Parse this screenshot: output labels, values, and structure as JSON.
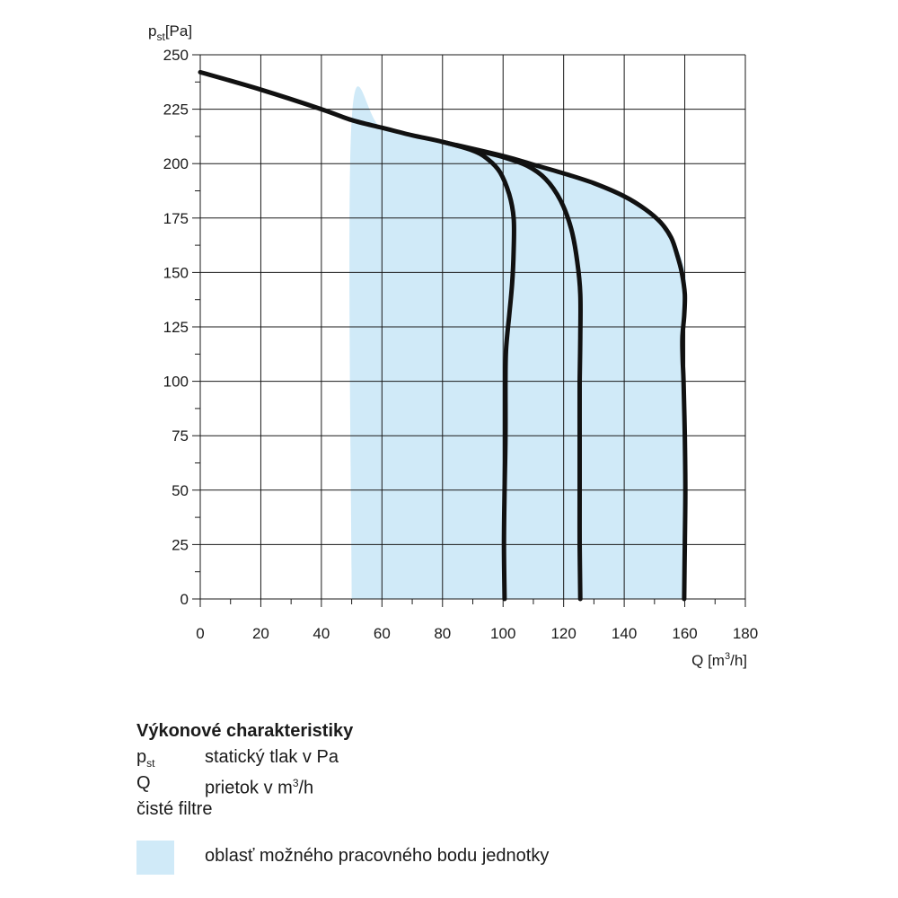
{
  "chart_data": {
    "type": "line",
    "xlabel": "Q [m³/h]",
    "xlabel_main": "Q [m",
    "xlabel_sup": "3",
    "xlabel_end": "/h]",
    "ylabel_main": "p",
    "ylabel_sub": "st",
    "ylabel_unit": "[Pa]",
    "xlim": [
      0,
      180
    ],
    "ylim": [
      0,
      250
    ],
    "xticks": [
      0,
      20,
      40,
      60,
      80,
      100,
      120,
      140,
      160,
      180
    ],
    "yticks": [
      0,
      25,
      50,
      75,
      100,
      125,
      150,
      175,
      200,
      225,
      250
    ],
    "grid": true,
    "colors": {
      "curve": "#111111",
      "area": "#d0eaf8",
      "grid": "#1a1a1a"
    },
    "area": {
      "label": "oblasť možného pracovného bodu jednotky",
      "x_min": 50,
      "points": [
        [
          50,
          0
        ],
        [
          50,
          220
        ],
        [
          60,
          216.5
        ],
        [
          80,
          210
        ],
        [
          100,
          203.5
        ],
        [
          110,
          199.5
        ],
        [
          120,
          195.5
        ],
        [
          135,
          188
        ],
        [
          145,
          182
        ],
        [
          152,
          174
        ],
        [
          156,
          166
        ],
        [
          159,
          156
        ],
        [
          160.5,
          145
        ],
        [
          160,
          130
        ],
        [
          159.5,
          115
        ],
        [
          160,
          100
        ],
        [
          160.5,
          50
        ],
        [
          160,
          0
        ]
      ]
    },
    "series": [
      {
        "points": [
          [
            0,
            242
          ],
          [
            20,
            234
          ],
          [
            40,
            225
          ],
          [
            50,
            220
          ],
          [
            60,
            216.5
          ],
          [
            70,
            213
          ],
          [
            80,
            210
          ],
          [
            90,
            206
          ],
          [
            95,
            202
          ],
          [
            99,
            196
          ],
          [
            102,
            186
          ],
          [
            103.5,
            175
          ],
          [
            103.5,
            160
          ],
          [
            103,
            145
          ],
          [
            102,
            130
          ],
          [
            101,
            115
          ],
          [
            100.8,
            100
          ],
          [
            100.8,
            75
          ],
          [
            100.5,
            50
          ],
          [
            100.3,
            25
          ],
          [
            100.5,
            0
          ]
        ]
      },
      {
        "points": [
          [
            80,
            210
          ],
          [
            90,
            206.5
          ],
          [
            100,
            203
          ],
          [
            108,
            199
          ],
          [
            114,
            193
          ],
          [
            119,
            183
          ],
          [
            122.5,
            170
          ],
          [
            124.5,
            155
          ],
          [
            125.5,
            140
          ],
          [
            125.5,
            120
          ],
          [
            125.3,
            100
          ],
          [
            125.3,
            75
          ],
          [
            125.3,
            50
          ],
          [
            125.3,
            25
          ],
          [
            125.5,
            0
          ]
        ]
      },
      {
        "points": [
          [
            80,
            210
          ],
          [
            100,
            203.5
          ],
          [
            110,
            199.5
          ],
          [
            120,
            195.5
          ],
          [
            130,
            191
          ],
          [
            140,
            185
          ],
          [
            147,
            179
          ],
          [
            152,
            173
          ],
          [
            155.5,
            166
          ],
          [
            157.5,
            158
          ],
          [
            159,
            150
          ],
          [
            160,
            140
          ],
          [
            159.8,
            130
          ],
          [
            159.2,
            120
          ],
          [
            159.3,
            110
          ],
          [
            159.6,
            100
          ],
          [
            160,
            75
          ],
          [
            160.2,
            50
          ],
          [
            160,
            25
          ],
          [
            159.8,
            0
          ]
        ]
      }
    ]
  },
  "legend": {
    "title": "Výkonové charakteristiky",
    "rows": [
      {
        "symbol": "p",
        "symbol_sub": "st",
        "text": "statický tlak v Pa"
      },
      {
        "symbol": "Q",
        "text": "prietok v m",
        "text_sup": "3",
        "text_end": "/h"
      },
      {
        "text": "čisté filtre"
      }
    ]
  }
}
